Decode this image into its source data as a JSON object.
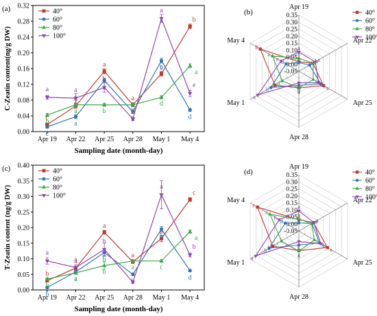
{
  "chart_data": [
    {
      "type": "line",
      "panel_label": "(a)",
      "ylabel": "C-Zeatin content(ng/g DW)",
      "xlabel": "Sampling date (month-day)",
      "categories": [
        "Apr 19",
        "Apr 22",
        "Apr 25",
        "Apr 28",
        "May 1",
        "May 4"
      ],
      "ylim": [
        0,
        0.32
      ],
      "yticks": [
        "0.00",
        "0.04",
        "0.08",
        "0.12",
        "0.16",
        "0.20",
        "0.24",
        "0.28",
        "0.32"
      ],
      "legend_position": "top-left",
      "series": [
        {
          "name": "40°",
          "color": "#c0392b",
          "marker": "square",
          "values": [
            0.018,
            0.065,
            0.153,
            0.068,
            0.147,
            0.267
          ],
          "letters": [
            "c",
            "b",
            "a",
            "a",
            "c",
            "b"
          ],
          "err": [
            0.004,
            0.006,
            0.006,
            0.005,
            0.006,
            0.006
          ]
        },
        {
          "name": "60°",
          "color": "#2e75b6",
          "marker": "circle",
          "values": [
            0.012,
            0.038,
            0.13,
            0.05,
            0.18,
            0.055
          ],
          "letters": [
            "c",
            "a",
            "a",
            "b",
            "b",
            "d"
          ],
          "err": [
            0.003,
            0.005,
            0.006,
            0.004,
            0.006,
            0.004
          ]
        },
        {
          "name": "80°",
          "color": "#3aa84a",
          "marker": "triangle",
          "values": [
            0.042,
            0.068,
            0.068,
            0.068,
            0.087,
            0.167
          ],
          "letters": [
            "b",
            "a",
            "b",
            "d",
            "d",
            "a"
          ],
          "err": [
            0.004,
            0.005,
            0.004,
            0.004,
            0.004,
            0.005
          ]
        },
        {
          "name": "100°",
          "color": "#8e44ad",
          "marker": "triangle-down",
          "values": [
            0.087,
            0.085,
            0.112,
            0.032,
            0.287,
            0.097
          ],
          "letters": [
            "a",
            "a",
            "b",
            "b",
            "a",
            "e"
          ],
          "err": [
            0.005,
            0.012,
            0.012,
            0.004,
            0.01,
            0.008
          ]
        }
      ]
    },
    {
      "type": "radar",
      "panel_label": "(b)",
      "axes": [
        "Apr 19",
        "Apr 22",
        "Apr 25",
        "Apr 28",
        "May 1",
        "May 4"
      ],
      "rlim": [
        -0.05,
        0.35
      ],
      "rticks": [
        "-0.05",
        "0.00",
        "0.05",
        "0.10",
        "0.15",
        "0.20",
        "0.25",
        "0.30",
        "0.35"
      ],
      "legend_position": "top-right",
      "series": [
        {
          "name": "40°",
          "color": "#c0392b",
          "marker": "square",
          "values": [
            0.018,
            0.065,
            0.153,
            0.068,
            0.147,
            0.267
          ],
          "letters": [
            "c",
            "b",
            "a",
            "a",
            "c",
            "b"
          ]
        },
        {
          "name": "60°",
          "color": "#2e75b6",
          "marker": "circle",
          "values": [
            0.012,
            0.038,
            0.13,
            0.05,
            0.18,
            0.055
          ],
          "letters": [
            "c",
            "a",
            "a",
            "b",
            "b",
            "d"
          ]
        },
        {
          "name": "80°",
          "color": "#3aa84a",
          "marker": "triangle",
          "values": [
            0.042,
            0.068,
            0.068,
            0.068,
            0.087,
            0.167
          ],
          "letters": [
            "b",
            "a",
            "b",
            "d",
            "d",
            "a"
          ]
        },
        {
          "name": "100°",
          "color": "#8e44ad",
          "marker": "triangle-down",
          "values": [
            0.087,
            0.085,
            0.112,
            0.032,
            0.287,
            0.097
          ],
          "letters": [
            "a",
            "a",
            "b",
            "b",
            "a",
            "e"
          ]
        }
      ]
    },
    {
      "type": "line",
      "panel_label": "(c)",
      "ylabel": "T-Zeatin content (ng/g DW)",
      "xlabel": "Sampling date (month-day)",
      "categories": [
        "Apr 19",
        "Apr 22",
        "Apr 25",
        "Apr 28",
        "May 1",
        "May 4"
      ],
      "ylim": [
        0,
        0.4
      ],
      "yticks": [
        "0.00",
        "0.05",
        "0.10",
        "0.15",
        "0.20",
        "0.25",
        "0.30",
        "0.35",
        "0.40"
      ],
      "legend_position": "top-left",
      "series": [
        {
          "name": "40°",
          "color": "#c0392b",
          "marker": "square",
          "values": [
            0.03,
            0.07,
            0.185,
            0.09,
            0.165,
            0.29
          ],
          "letters": [
            "b",
            "a",
            "a",
            "a",
            "b",
            "c"
          ],
          "err": [
            0.004,
            0.006,
            0.006,
            0.005,
            0.01,
            0.006
          ]
        },
        {
          "name": "60°",
          "color": "#2e75b6",
          "marker": "circle",
          "values": [
            0.008,
            0.058,
            0.12,
            0.05,
            0.195,
            0.062
          ],
          "letters": [
            "b",
            "a",
            "b",
            "b",
            "b",
            "d"
          ],
          "err": [
            0.003,
            0.005,
            0.012,
            0.004,
            0.008,
            0.004
          ]
        },
        {
          "name": "80°",
          "color": "#3aa84a",
          "marker": "triangle",
          "values": [
            0.035,
            0.055,
            0.078,
            0.093,
            0.093,
            0.187
          ],
          "letters": [
            "b",
            "a",
            "b",
            "a",
            "c",
            "a"
          ],
          "err": [
            0.004,
            0.005,
            0.012,
            0.004,
            0.004,
            0.005
          ]
        },
        {
          "name": "100°",
          "color": "#8e44ad",
          "marker": "triangle-down",
          "values": [
            0.093,
            0.072,
            0.13,
            0.025,
            0.305,
            0.112
          ],
          "letters": [
            "a",
            "a",
            "b",
            "c",
            "a",
            "b"
          ],
          "err": [
            0.01,
            0.008,
            0.02,
            0.004,
            0.045,
            0.006
          ]
        }
      ]
    },
    {
      "type": "radar",
      "panel_label": "(d)",
      "axes": [
        "Apr 19",
        "Apr 22",
        "Apr 25",
        "Apr 28",
        "May 1",
        "May 4"
      ],
      "rlim": [
        -0.05,
        0.35
      ],
      "rticks": [
        "-0.05",
        "0.00",
        "0.05",
        "0.10",
        "0.15",
        "0.20",
        "0.25",
        "0.30",
        "0.35"
      ],
      "legend_position": "top-right",
      "series": [
        {
          "name": "40°",
          "color": "#c0392b",
          "marker": "square",
          "values": [
            0.03,
            0.07,
            0.185,
            0.09,
            0.165,
            0.29
          ],
          "letters": [
            "b",
            "a",
            "a",
            "a",
            "b",
            "c"
          ]
        },
        {
          "name": "60°",
          "color": "#2e75b6",
          "marker": "circle",
          "values": [
            0.008,
            0.058,
            0.12,
            0.05,
            0.195,
            0.062
          ],
          "letters": [
            "b",
            "a",
            "b",
            "b",
            "b",
            "d"
          ]
        },
        {
          "name": "80°",
          "color": "#3aa84a",
          "marker": "triangle",
          "values": [
            0.035,
            0.055,
            0.078,
            0.093,
            0.093,
            0.187
          ],
          "letters": [
            "b",
            "a",
            "b",
            "a",
            "c",
            "a"
          ]
        },
        {
          "name": "100°",
          "color": "#8e44ad",
          "marker": "triangle-down",
          "values": [
            0.093,
            0.072,
            0.13,
            0.025,
            0.305,
            0.112
          ],
          "letters": [
            "a",
            "a",
            "b",
            "c",
            "a",
            "b"
          ]
        }
      ]
    }
  ]
}
